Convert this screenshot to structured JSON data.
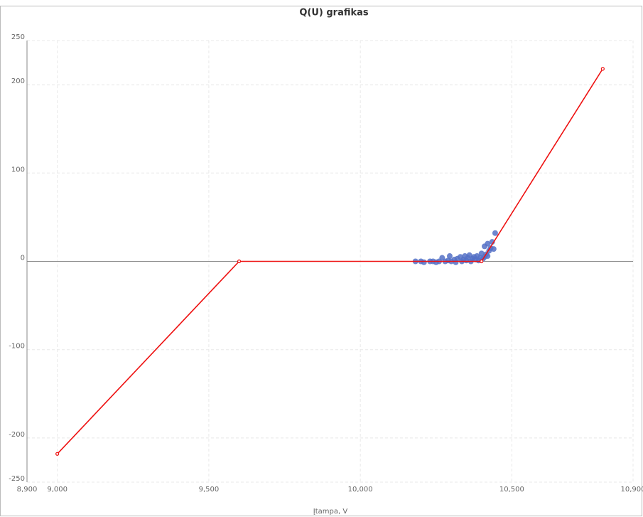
{
  "chart_data": {
    "type": "scatter",
    "title": "Q(U) grafikas",
    "x_label": "Įtampa, V",
    "xlim": [
      8900,
      10900
    ],
    "xticks": [
      {
        "value": 8900,
        "label": "8,900"
      },
      {
        "value": 9000,
        "label": "9,000"
      },
      {
        "value": 9500,
        "label": "9,500"
      },
      {
        "value": 10000,
        "label": "10,000"
      },
      {
        "value": 10500,
        "label": "10,500"
      },
      {
        "value": 10900,
        "label": "10,900"
      }
    ],
    "ylim": [
      -250,
      250
    ],
    "yticks": [
      -250,
      -200,
      -100,
      0,
      100,
      200,
      250
    ],
    "grid": true,
    "series": [
      {
        "type": "scatter",
        "color": "#5470c6",
        "x": [
          10182,
          10200,
          10210,
          10230,
          10240,
          10250,
          10260,
          10270,
          10280,
          10290,
          10295,
          10300,
          10310,
          10315,
          10320,
          10330,
          10335,
          10340,
          10345,
          10350,
          10355,
          10360,
          10365,
          10370,
          10375,
          10380,
          10385,
          10390,
          10395,
          10400,
          10405,
          10410,
          10415,
          10420,
          10425,
          10430,
          10435,
          10440,
          10445,
          10420,
          10410
        ],
        "values": [
          0,
          0,
          -1,
          0,
          0,
          -1,
          0,
          4,
          0,
          1,
          6,
          0,
          2,
          -1,
          3,
          5,
          0,
          2,
          6,
          1,
          4,
          7,
          0,
          3,
          5,
          2,
          6,
          1,
          4,
          9,
          3,
          17,
          8,
          20,
          12,
          15,
          22,
          14,
          32,
          6,
          5
        ]
      },
      {
        "type": "line",
        "color": "#ee1111",
        "x": [
          9000,
          9600,
          10400,
          10800
        ],
        "values": [
          -218,
          0,
          0,
          218
        ]
      }
    ]
  }
}
